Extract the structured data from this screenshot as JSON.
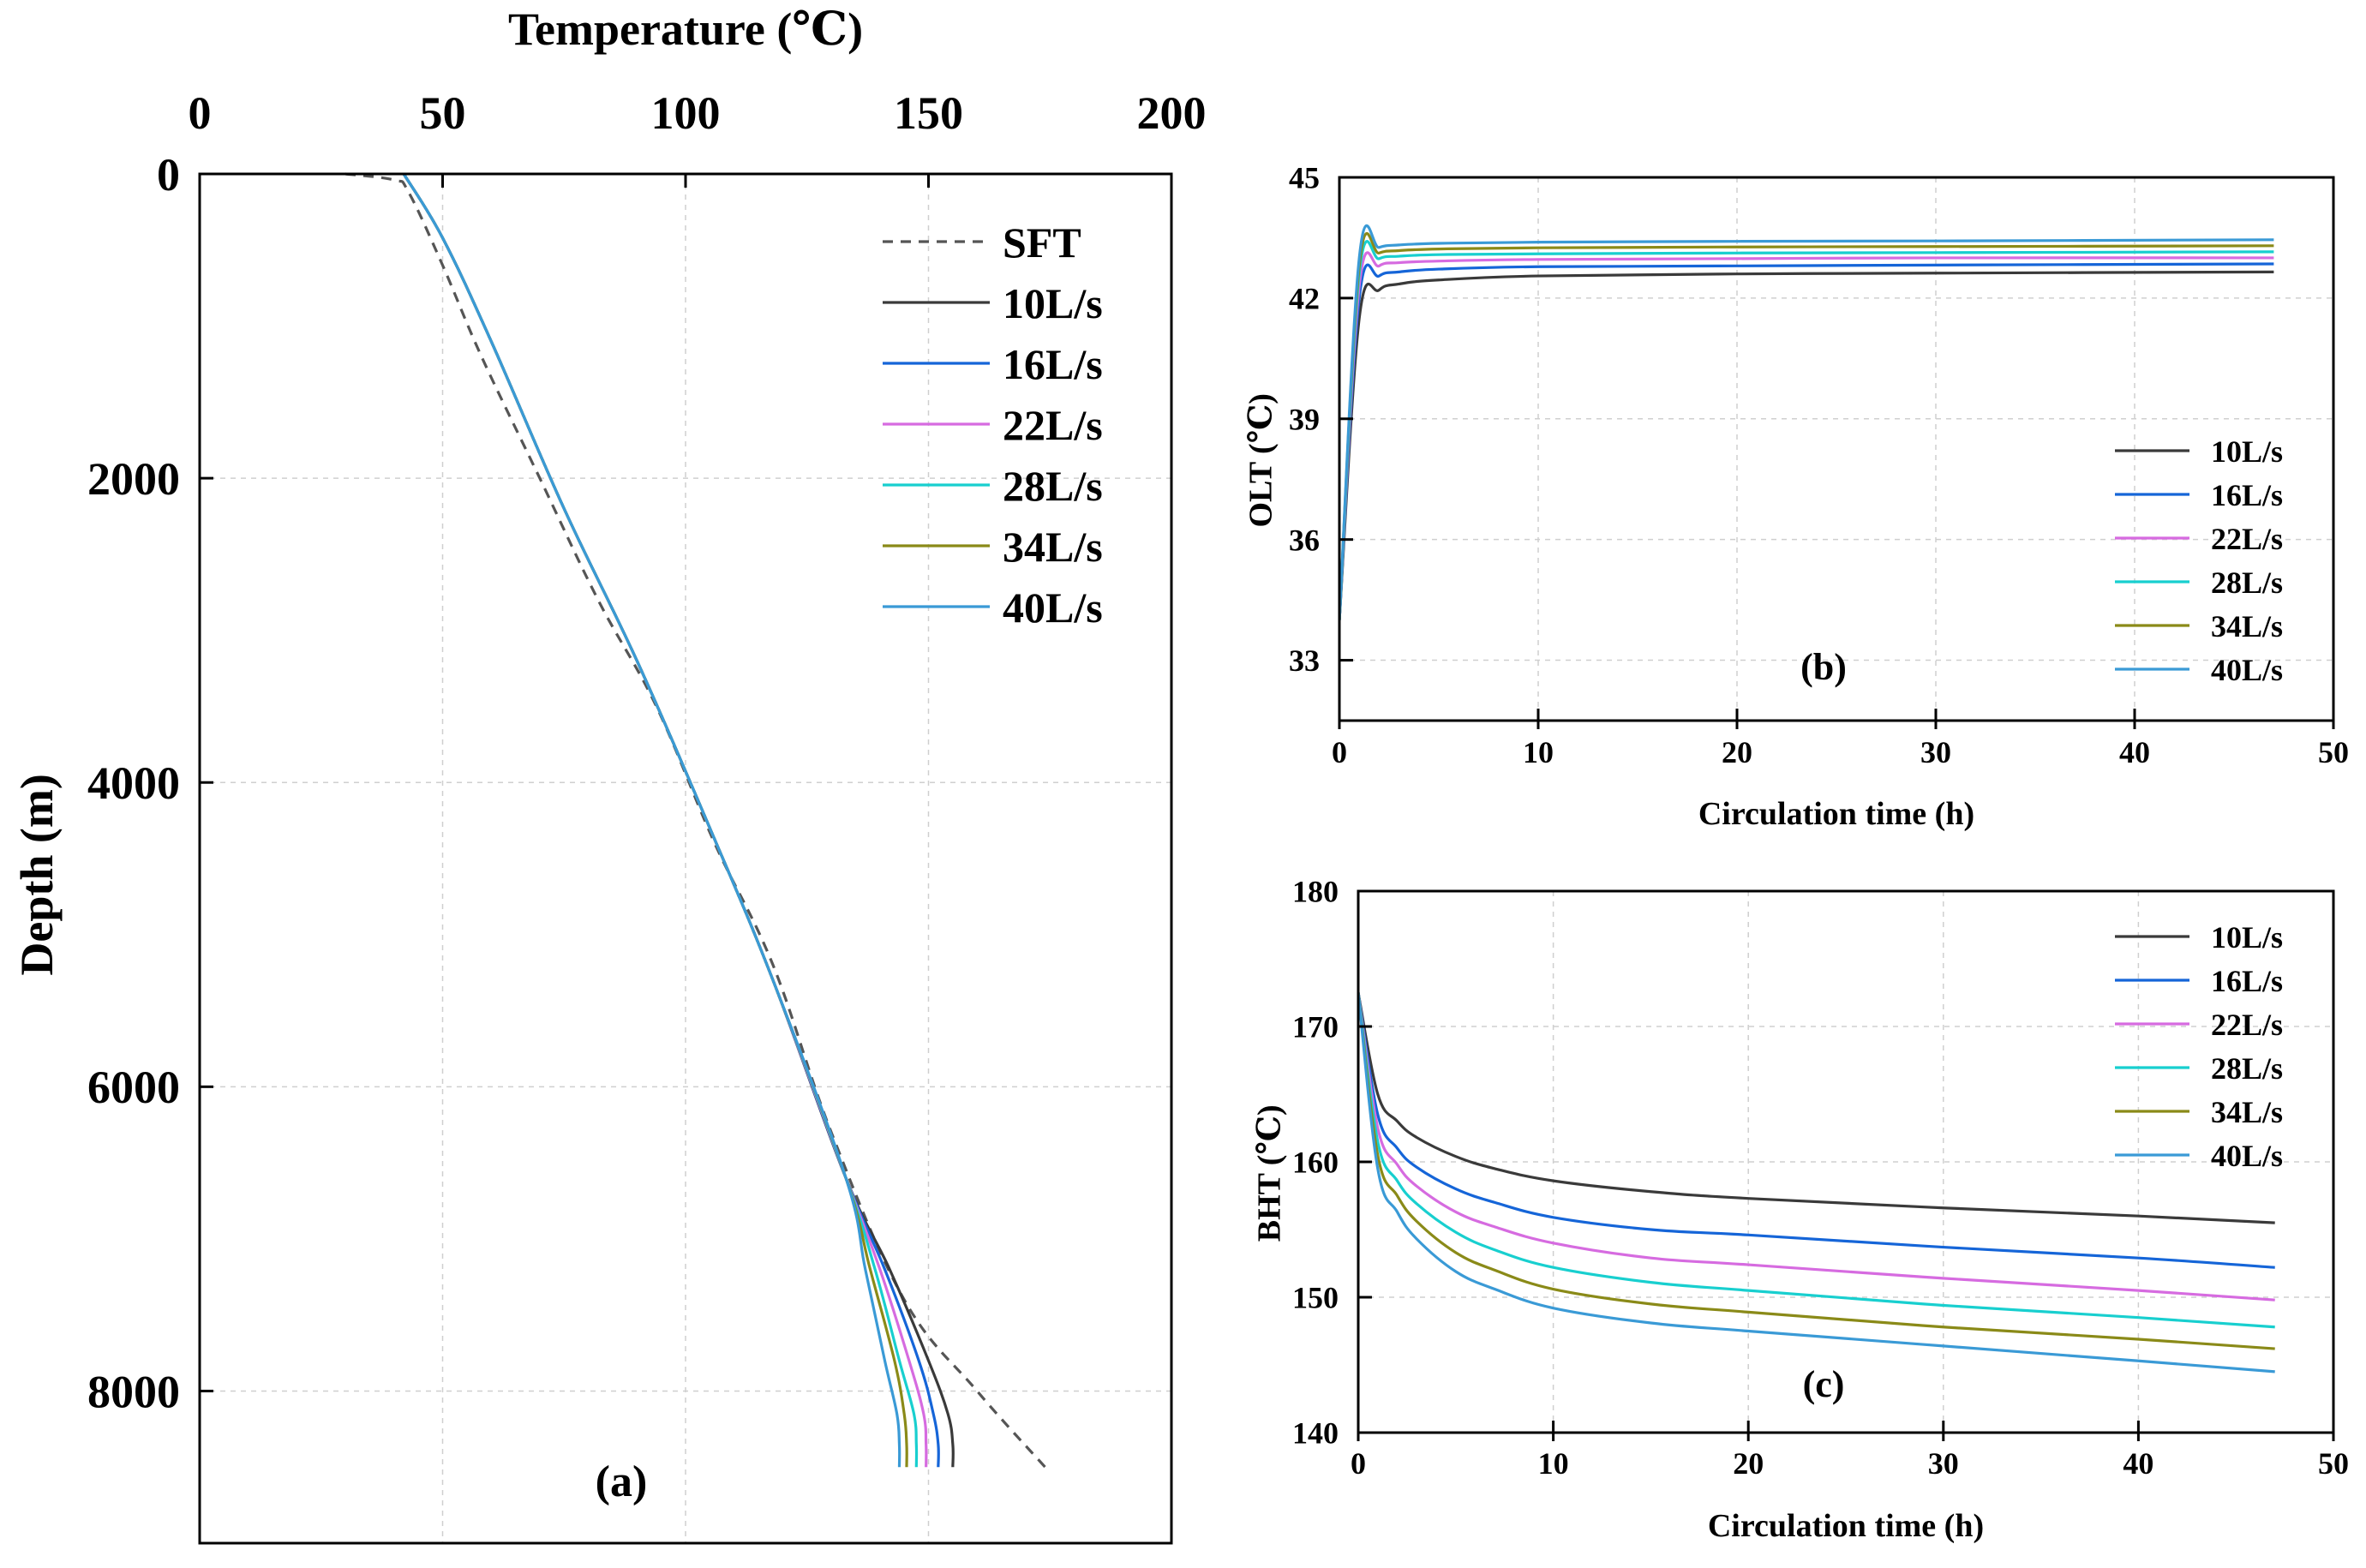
{
  "colors": {
    "SFT": "#555555",
    "10L/s": "#3a3a3a",
    "16L/s": "#1565d8",
    "22L/s": "#d66be0",
    "28L/s": "#18cfcf",
    "34L/s": "#8a8a18",
    "40L/s": "#3a9ad6"
  },
  "chart_data": [
    {
      "id": "a",
      "type": "line",
      "panel_label": "(a)",
      "xlabel": "Temperature (℃)",
      "ylabel": "Depth (m)",
      "xlim": [
        0,
        200
      ],
      "ylim": [
        0,
        9000
      ],
      "y_inverted": true,
      "xticks": [
        0,
        50,
        100,
        150,
        200
      ],
      "yticks": [
        0,
        2000,
        4000,
        6000,
        8000
      ],
      "grid": true,
      "legend": "top-right",
      "series": [
        {
          "name": "SFT",
          "dashed": true,
          "x": [
            30,
            40,
            43,
            50,
            58,
            70,
            82,
            94,
            106,
            118,
            130,
            145,
            160,
            174
          ],
          "y": [
            0,
            40,
            120,
            600,
            1200,
            2000,
            2800,
            3500,
            4400,
            5200,
            6300,
            7400,
            8000,
            8500
          ]
        },
        {
          "name": "10L/s",
          "x": [
            42,
            50,
            60,
            75,
            90,
            105,
            118,
            133,
            142,
            150,
            154,
            155,
            155
          ],
          "y": [
            0,
            420,
            1100,
            2200,
            3200,
            4300,
            5300,
            6600,
            7200,
            7800,
            8150,
            8350,
            8500
          ]
        },
        {
          "name": "16L/s",
          "x": [
            42,
            50,
            60,
            75,
            90,
            105,
            118,
            133,
            141,
            148,
            151,
            152,
            152
          ],
          "y": [
            0,
            420,
            1100,
            2200,
            3200,
            4300,
            5300,
            6600,
            7200,
            7800,
            8150,
            8350,
            8500
          ]
        },
        {
          "name": "22L/s",
          "x": [
            42,
            50,
            60,
            75,
            90,
            105,
            118,
            133,
            140,
            146,
            149,
            149.5,
            149.5
          ],
          "y": [
            0,
            420,
            1100,
            2200,
            3200,
            4300,
            5300,
            6600,
            7200,
            7800,
            8150,
            8350,
            8500
          ]
        },
        {
          "name": "28L/s",
          "x": [
            42,
            50,
            60,
            75,
            90,
            105,
            118,
            133,
            139,
            144,
            147,
            147.5,
            147.5
          ],
          "y": [
            0,
            420,
            1100,
            2200,
            3200,
            4300,
            5300,
            6600,
            7200,
            7800,
            8150,
            8350,
            8500
          ]
        },
        {
          "name": "34L/s",
          "x": [
            42,
            50,
            60,
            75,
            90,
            105,
            118,
            133,
            138,
            143,
            145,
            145.5,
            145.5
          ],
          "y": [
            0,
            420,
            1100,
            2200,
            3200,
            4300,
            5300,
            6600,
            7200,
            7800,
            8150,
            8350,
            8500
          ]
        },
        {
          "name": "40L/s",
          "x": [
            42,
            50,
            60,
            75,
            90,
            105,
            118,
            133,
            137,
            141,
            143.5,
            144,
            144
          ],
          "y": [
            0,
            420,
            1100,
            2200,
            3200,
            4300,
            5300,
            6600,
            7200,
            7800,
            8150,
            8350,
            8500
          ]
        }
      ]
    },
    {
      "id": "b",
      "type": "line",
      "panel_label": "(b)",
      "xlabel": "Circulation time (h)",
      "ylabel": "OLT (℃)",
      "xlim": [
        0,
        50
      ],
      "ylim": [
        31.5,
        45
      ],
      "xticks": [
        0,
        10,
        20,
        30,
        40,
        50
      ],
      "yticks": [
        33,
        36,
        39,
        42,
        45
      ],
      "grid": true,
      "legend": "bottom-right",
      "series": [
        {
          "name": "10L/s",
          "x": [
            0,
            1,
            2,
            3,
            5,
            10,
            20,
            30,
            47
          ],
          "y": [
            34,
            41.5,
            42.2,
            42.35,
            42.45,
            42.55,
            42.6,
            42.62,
            42.65
          ]
        },
        {
          "name": "16L/s",
          "x": [
            0,
            1,
            2,
            3,
            5,
            10,
            20,
            30,
            47
          ],
          "y": [
            34,
            42.0,
            42.55,
            42.65,
            42.72,
            42.78,
            42.8,
            42.82,
            42.85
          ]
        },
        {
          "name": "22L/s",
          "x": [
            0,
            1,
            2,
            3,
            5,
            10,
            20,
            30,
            47
          ],
          "y": [
            34,
            42.3,
            42.8,
            42.88,
            42.92,
            42.96,
            42.98,
            43.0,
            43.0
          ]
        },
        {
          "name": "28L/s",
          "x": [
            0,
            1,
            2,
            3,
            5,
            10,
            20,
            30,
            47
          ],
          "y": [
            34,
            42.6,
            42.98,
            43.04,
            43.08,
            43.1,
            43.12,
            43.13,
            43.15
          ]
        },
        {
          "name": "34L/s",
          "x": [
            0,
            1,
            2,
            3,
            5,
            10,
            20,
            30,
            47
          ],
          "y": [
            34,
            42.8,
            43.12,
            43.18,
            43.22,
            43.25,
            43.27,
            43.28,
            43.3
          ]
        },
        {
          "name": "40L/s",
          "x": [
            0,
            1,
            2,
            3,
            5,
            10,
            20,
            30,
            47
          ],
          "y": [
            34,
            43.0,
            43.26,
            43.32,
            43.36,
            43.39,
            43.41,
            43.42,
            43.45
          ]
        }
      ]
    },
    {
      "id": "c",
      "type": "line",
      "panel_label": "(c)",
      "xlabel": "Circulation time (h)",
      "ylabel": "BHT (℃)",
      "xlim": [
        0,
        50
      ],
      "ylim": [
        140,
        180
      ],
      "xticks": [
        0,
        10,
        20,
        30,
        40,
        50
      ],
      "yticks": [
        140,
        150,
        160,
        170,
        180
      ],
      "grid": true,
      "legend": "top-right",
      "series": [
        {
          "name": "10L/s",
          "x": [
            0,
            1,
            2,
            3,
            5,
            7,
            10,
            15,
            20,
            30,
            40,
            47
          ],
          "y": [
            172.5,
            165,
            163,
            161.8,
            160.4,
            159.5,
            158.6,
            157.8,
            157.3,
            156.6,
            156,
            155.5
          ]
        },
        {
          "name": "16L/s",
          "x": [
            0,
            1,
            2,
            3,
            5,
            7,
            10,
            15,
            20,
            30,
            40,
            47
          ],
          "y": [
            172.5,
            163.5,
            161,
            159.6,
            158,
            157,
            155.9,
            155,
            154.6,
            153.7,
            152.9,
            152.2
          ]
        },
        {
          "name": "22L/s",
          "x": [
            0,
            1,
            2,
            3,
            5,
            7,
            10,
            15,
            20,
            30,
            40,
            47
          ],
          "y": [
            172.5,
            162.5,
            159.8,
            158.2,
            156.3,
            155.2,
            154,
            152.9,
            152.4,
            151.4,
            150.5,
            149.8
          ]
        },
        {
          "name": "28L/s",
          "x": [
            0,
            1,
            2,
            3,
            5,
            7,
            10,
            15,
            20,
            30,
            40,
            47
          ],
          "y": [
            172.5,
            161.5,
            158.6,
            156.9,
            154.8,
            153.5,
            152.2,
            151.1,
            150.5,
            149.4,
            148.5,
            147.8
          ]
        },
        {
          "name": "34L/s",
          "x": [
            0,
            1,
            2,
            3,
            5,
            7,
            10,
            15,
            20,
            30,
            40,
            47
          ],
          "y": [
            172.5,
            160.5,
            157.5,
            155.6,
            153.3,
            152,
            150.6,
            149.5,
            148.9,
            147.8,
            146.9,
            146.2
          ]
        },
        {
          "name": "40L/s",
          "x": [
            0,
            1,
            2,
            3,
            5,
            7,
            10,
            15,
            20,
            30,
            40,
            47
          ],
          "y": [
            172.5,
            159.5,
            156.3,
            154.3,
            151.9,
            150.6,
            149.2,
            148.1,
            147.5,
            146.4,
            145.3,
            144.5
          ]
        }
      ]
    }
  ]
}
